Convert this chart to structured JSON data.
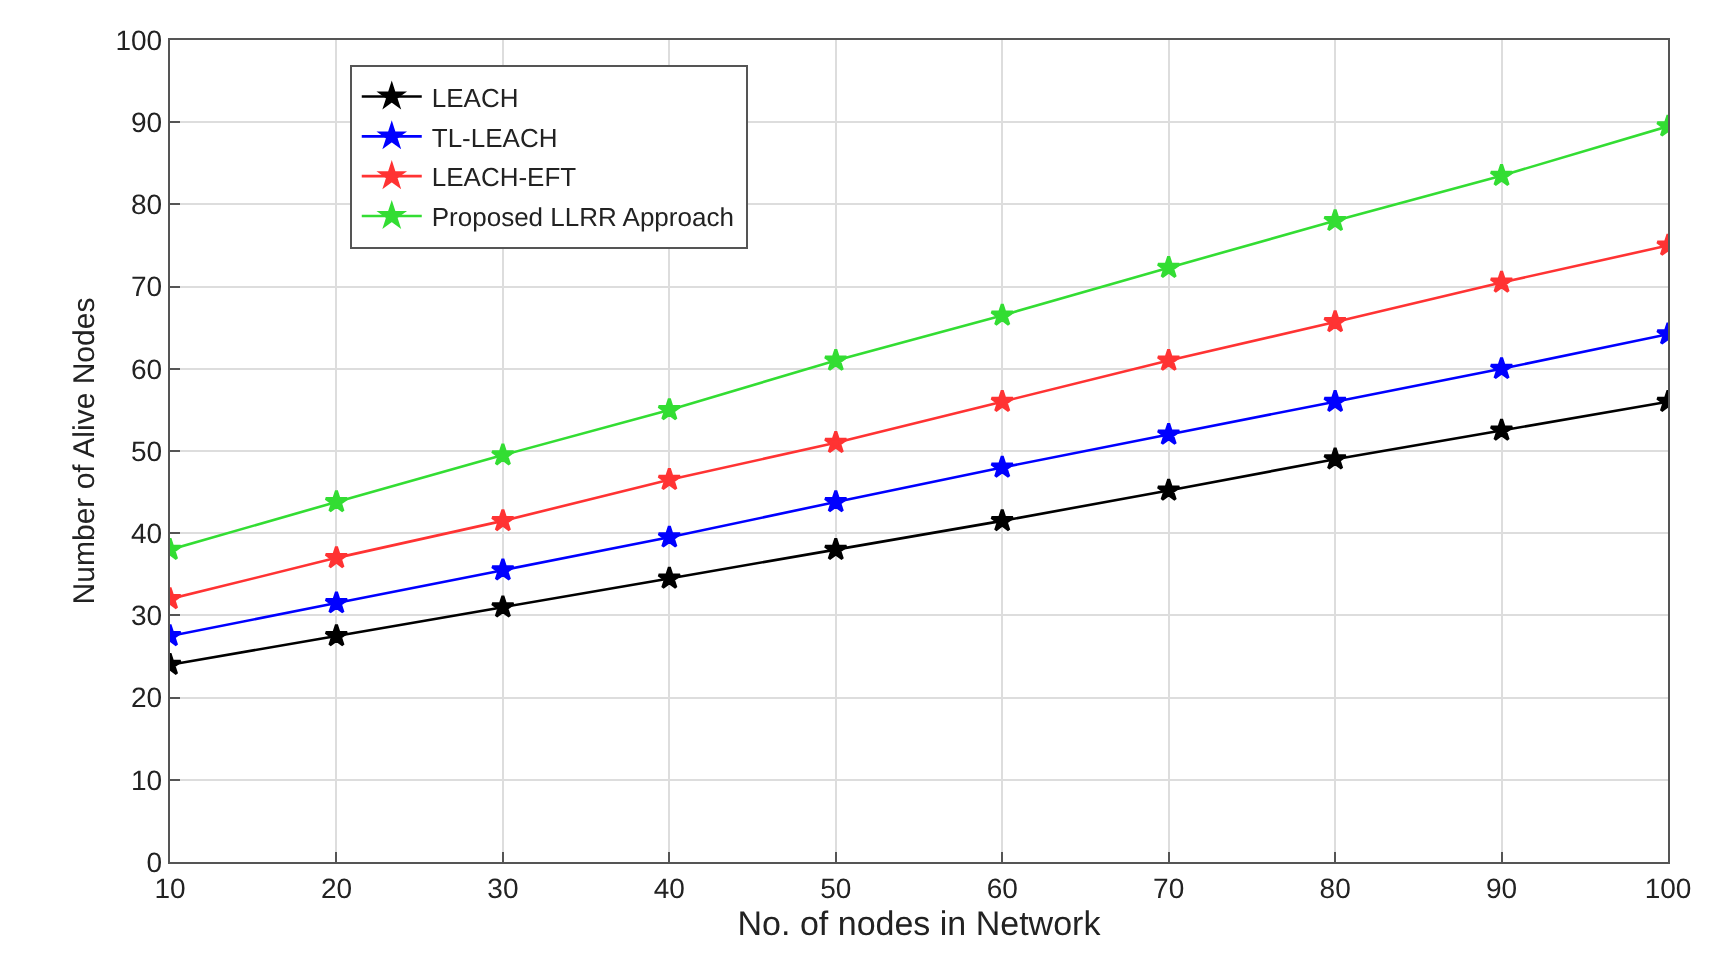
{
  "chart_data": {
    "type": "line",
    "xlabel": "No. of nodes in Network",
    "ylabel": "Number of Alive Nodes",
    "x": [
      10,
      20,
      30,
      40,
      50,
      60,
      70,
      80,
      90,
      100
    ],
    "series": [
      {
        "name": "LEACH",
        "color": "#000000",
        "values": [
          24,
          27.5,
          31,
          34.5,
          38,
          41.5,
          45.2,
          49,
          52.5,
          56
        ]
      },
      {
        "name": "TL-LEACH",
        "color": "#0000ff",
        "values": [
          27.5,
          31.5,
          35.5,
          39.5,
          43.8,
          48,
          52,
          56,
          60,
          64.2
        ]
      },
      {
        "name": "LEACH-EFT",
        "color": "#ff3333",
        "values": [
          32,
          37,
          41.5,
          46.5,
          51,
          56,
          61,
          65.7,
          70.5,
          75
        ]
      },
      {
        "name": "Proposed LLRR Approach",
        "color": "#33dd33",
        "values": [
          38,
          43.8,
          49.5,
          55,
          61,
          66.5,
          72.3,
          78,
          83.5,
          89.5
        ]
      }
    ],
    "xlim": [
      10,
      100
    ],
    "xticks": [
      10,
      20,
      30,
      40,
      50,
      60,
      70,
      80,
      90,
      100
    ],
    "ylim": [
      0,
      100
    ],
    "yticks": [
      0,
      10,
      20,
      30,
      40,
      50,
      60,
      70,
      80,
      90,
      100
    ],
    "grid": true,
    "legend": "top left",
    "marker": "star",
    "line_style": "solid"
  }
}
